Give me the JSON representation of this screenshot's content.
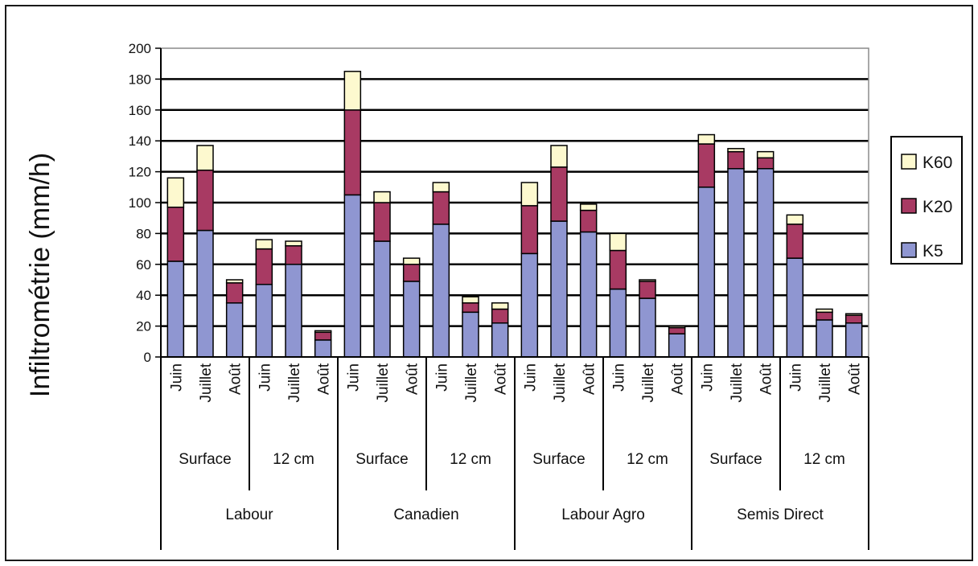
{
  "chart_data": {
    "type": "bar",
    "stacked": true,
    "ylabel": "Infiltrométrie (mm/h)",
    "xlabel": "",
    "ylim": [
      0,
      200
    ],
    "yticks": [
      0,
      20,
      40,
      60,
      80,
      100,
      120,
      140,
      160,
      180,
      200
    ],
    "grid": true,
    "legend_position": "right",
    "groups": [
      "Labour",
      "Canadien",
      "Labour Agro",
      "Semis Direct"
    ],
    "depths": [
      "Surface",
      "12 cm"
    ],
    "months": [
      "Juin",
      "Juillet",
      "Août"
    ],
    "series": [
      {
        "name": "K5",
        "color": "#8f96d1",
        "values": [
          62,
          82,
          35,
          47,
          60,
          11,
          105,
          75,
          49,
          86,
          29,
          22,
          67,
          88,
          81,
          44,
          38,
          15,
          110,
          122,
          122,
          64,
          24,
          22
        ]
      },
      {
        "name": "K20",
        "color": "#a83a63",
        "values": [
          35,
          39,
          13,
          23,
          12,
          5,
          55,
          25,
          11,
          21,
          6,
          9,
          31,
          35,
          14,
          25,
          11,
          4,
          28,
          11,
          7,
          22,
          5,
          5
        ]
      },
      {
        "name": "K60",
        "color": "#fdf9cf",
        "values": [
          19,
          16,
          2,
          6,
          3,
          1,
          25,
          7,
          4,
          6,
          4,
          4,
          15,
          14,
          4,
          11,
          1,
          1,
          6,
          2,
          4,
          6,
          2,
          1
        ]
      }
    ]
  }
}
